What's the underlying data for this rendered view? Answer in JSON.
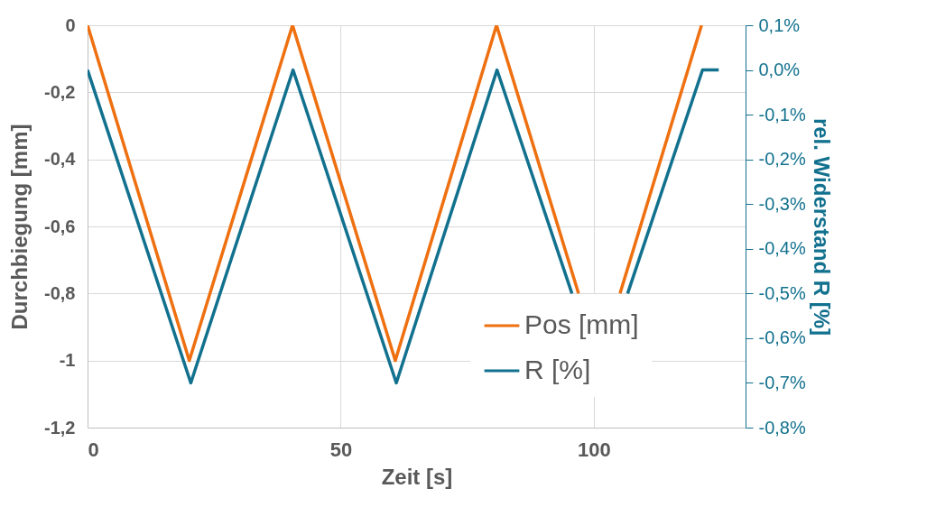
{
  "chart_data": {
    "type": "line",
    "xlabel": "Zeit [s]",
    "ylabel": "Durchbiegung [mm]",
    "y2label": "rel. Widerstand R [%]",
    "xlim": [
      0,
      130
    ],
    "xticks": [
      0,
      50,
      100
    ],
    "ylim": [
      -1.2,
      0
    ],
    "yticks": [
      {
        "value": -1.2,
        "label": "-1,2"
      },
      -1,
      {
        "value": -0.8,
        "label": "-0,8"
      },
      {
        "value": -0.6,
        "label": "-0,6"
      },
      {
        "value": -0.4,
        "label": "-0,4"
      },
      {
        "value": -0.2,
        "label": "-0,2"
      },
      0
    ],
    "y2lim": [
      -0.8,
      0.1
    ],
    "y2ticks": [
      {
        "value": -0.8,
        "label": "-0,8%"
      },
      {
        "value": -0.7,
        "label": "-0,7%"
      },
      {
        "value": -0.6,
        "label": "-0,6%"
      },
      {
        "value": -0.5,
        "label": "-0,5%"
      },
      {
        "value": -0.4,
        "label": "-0,4%"
      },
      {
        "value": -0.3,
        "label": "-0,3%"
      },
      {
        "value": -0.2,
        "label": "-0,2%"
      },
      {
        "value": -0.1,
        "label": "-0,1%"
      },
      {
        "value": 0,
        "label": "0,0%"
      },
      {
        "value": 0.1,
        "label": "0,1%"
      }
    ],
    "grid": true,
    "legend": "bottom right",
    "line_style": "solid",
    "marker": "none",
    "series": [
      {
        "name": "Pos [mm]",
        "color": "#ee7011",
        "x": [
          0,
          20.1,
          40.5,
          60.8,
          80.8,
          97.0,
          101,
          105.2,
          121.3
        ],
        "values": [
          0,
          -1,
          0,
          -1,
          0,
          -0.8,
          null,
          -0.8,
          0
        ]
      },
      {
        "name": "R [%]",
        "color": "#12718e",
        "axis": "y2",
        "x": [
          0,
          20.4,
          40.6,
          61,
          80.9,
          95.7,
          101,
          106.7,
          121.5,
          124.7
        ],
        "values": [
          0,
          -0.7,
          0,
          -0.7,
          0,
          -0.5,
          null,
          -0.5,
          0,
          0
        ]
      }
    ]
  }
}
